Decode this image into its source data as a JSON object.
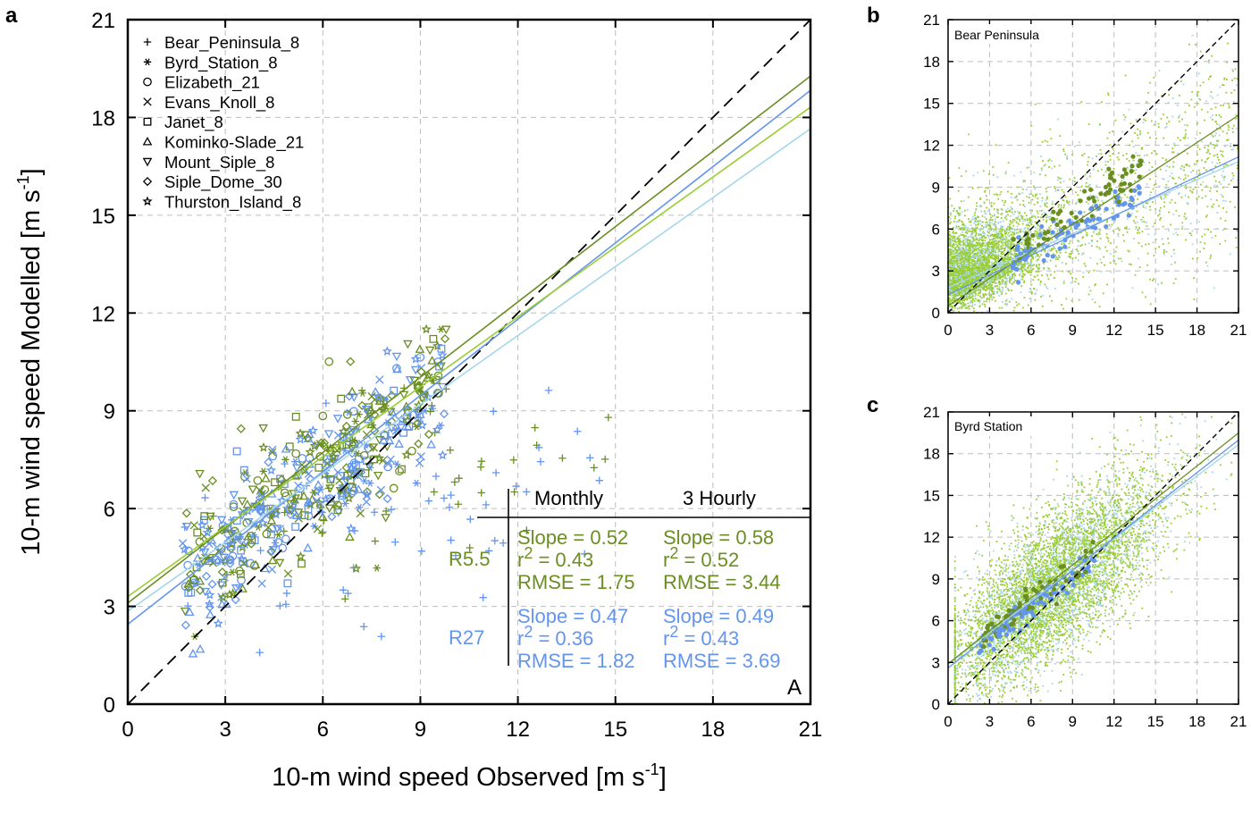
{
  "colors": {
    "r55_monthly": "#6b8e23",
    "r27_monthly": "#6495ed",
    "r55_3hourly": "#9acd32",
    "r27_3hourly": "#a6d6ec",
    "one_to_one": "#000000"
  },
  "chart_data": [
    {
      "panel": "a",
      "type": "scatter",
      "xlabel": "10-m wind speed Observed [m s-1]",
      "xlabel_main": "10-m wind speed Observed [m s",
      "xlabel_sup": "-1",
      "xlabel_end": "]",
      "ylabel": "10-m wind speed Modelled [m s-1]",
      "ylabel_main": "10-m wind speed Modelled [m s",
      "ylabel_sup": "-1",
      "ylabel_end": "]",
      "xlim": [
        0,
        21
      ],
      "ylim": [
        0,
        21
      ],
      "ticks": [
        "0",
        "3",
        "6",
        "9",
        "12",
        "15",
        "18",
        "21"
      ],
      "legend": [
        {
          "symbol": "+",
          "marker": "plus",
          "label": "Bear_Peninsula_8"
        },
        {
          "symbol": "✱",
          "marker": "asterisk",
          "label": "Byrd_Station_8"
        },
        {
          "symbol": "○",
          "marker": "circle",
          "label": "Elizabeth_21"
        },
        {
          "symbol": "×",
          "marker": "cross",
          "label": "Evans_Knoll_8"
        },
        {
          "symbol": "□",
          "marker": "square",
          "label": "Janet_8"
        },
        {
          "symbol": "△",
          "marker": "triangle",
          "label": "Kominko-Slade_21"
        },
        {
          "symbol": "▽",
          "marker": "triangle-down",
          "label": "Mount_Siple_8"
        },
        {
          "symbol": "◇",
          "marker": "diamond",
          "label": "Siple_Dome_30"
        },
        {
          "symbol": "☆",
          "marker": "star",
          "label": "Thurston_Island_8"
        }
      ],
      "fit_lines": [
        {
          "name": "R5.5 monthly",
          "color_key": "r55_monthly",
          "intercept": 3.1,
          "slope": 0.77
        },
        {
          "name": "R27 monthly",
          "color_key": "r27_monthly",
          "intercept": 2.45,
          "slope": 0.78
        },
        {
          "name": "R5.5 3-hourly",
          "color_key": "r55_3hourly",
          "intercept": 3.3,
          "slope": 0.715
        },
        {
          "name": "R27 3-hourly",
          "color_key": "r27_3hourly",
          "intercept": 2.85,
          "slope": 0.705
        }
      ],
      "stats_table": {
        "col_monthly": "Monthly",
        "col_3hourly": "3 Hourly",
        "rows": [
          {
            "label": "R5.5",
            "color_key": "r55_monthly",
            "monthly": {
              "slope": "Slope = 0.52",
              "r2_prefix": "r",
              "r2_sup": "2",
              "r2_value": " = 0.43",
              "rmse": "RMSE = 1.75"
            },
            "hourly": {
              "slope": "Slope = 0.58",
              "r2_prefix": "r",
              "r2_sup": "2",
              "r2_value": " = 0.52",
              "rmse": "RMSE = 3.44"
            }
          },
          {
            "label": "R27",
            "color_key": "r27_monthly",
            "monthly": {
              "slope": "Slope = 0.47",
              "r2_prefix": "r",
              "r2_sup": "2",
              "r2_value": " = 0.36",
              "rmse": "RMSE = 1.82"
            },
            "hourly": {
              "slope": "Slope = 0.49",
              "r2_prefix": "r",
              "r2_sup": "2",
              "r2_value": " = 0.43",
              "rmse": "RMSE = 3.69"
            }
          }
        ]
      },
      "corner_label": "A"
    },
    {
      "panel": "b",
      "type": "scatter",
      "title": "Bear Peninsula",
      "xlim": [
        0,
        21
      ],
      "ylim": [
        0,
        21
      ],
      "ticks": [
        "0",
        "3",
        "6",
        "9",
        "12",
        "15",
        "18",
        "21"
      ],
      "fit_lines": [
        {
          "name": "R5.5",
          "color_key": "r55_monthly",
          "intercept": 0.5,
          "slope": 0.65
        },
        {
          "name": "R27",
          "color_key": "r27_monthly",
          "intercept": 1.3,
          "slope": 0.47
        }
      ]
    },
    {
      "panel": "c",
      "type": "scatter",
      "title": "Byrd Station",
      "xlim": [
        0,
        21
      ],
      "ylim": [
        0,
        21
      ],
      "ticks": [
        "0",
        "3",
        "6",
        "9",
        "12",
        "15",
        "18",
        "21"
      ],
      "fit_lines": [
        {
          "name": "R5.5",
          "color_key": "r55_monthly",
          "intercept": 2.9,
          "slope": 0.79
        },
        {
          "name": "R27",
          "color_key": "r27_monthly",
          "intercept": 2.6,
          "slope": 0.78
        }
      ]
    }
  ]
}
